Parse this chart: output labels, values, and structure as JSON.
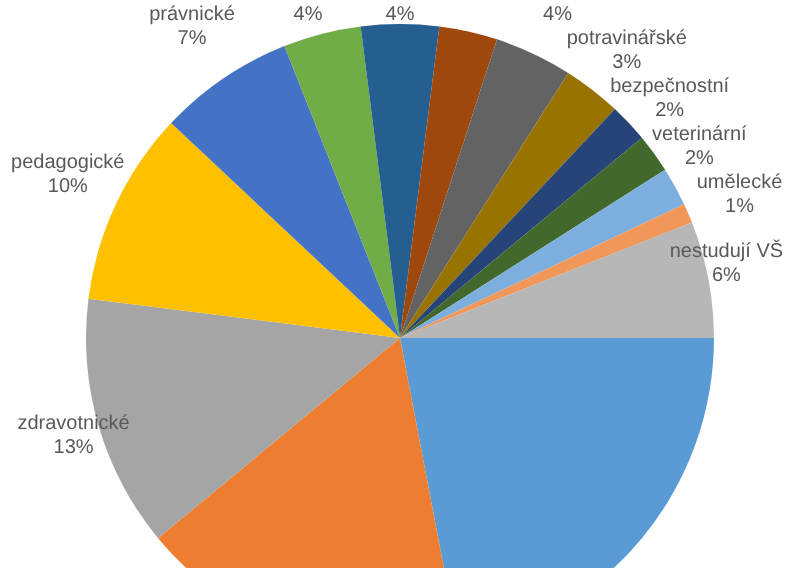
{
  "chart_data": {
    "type": "pie",
    "categories": [
      null,
      null,
      "zdravotnické",
      "pedagogické",
      "právnické",
      null,
      null,
      null,
      null,
      "potravinářské",
      "bezpečnostní",
      "veterinární",
      null,
      "umělecké",
      "nestudují VŠ"
    ],
    "values": [
      22,
      17,
      13,
      10,
      7,
      4,
      4,
      3,
      4,
      3,
      2,
      2,
      2,
      1,
      6
    ],
    "value_labels": [
      null,
      null,
      "13%",
      "10%",
      "7%",
      "4%",
      "4%",
      null,
      "4%",
      "3%",
      "2%",
      "2%",
      null,
      "1%",
      "6%"
    ],
    "colors": [
      "#5b9bd5",
      "#ed7d31",
      "#a5a5a5",
      "#ffc000",
      "#4472c4",
      "#70ad47",
      "#255e91",
      "#9e480e",
      "#636363",
      "#997300",
      "#264478",
      "#43682b",
      "#7cafdd",
      "#f1975a",
      "#b7b7b7"
    ]
  }
}
